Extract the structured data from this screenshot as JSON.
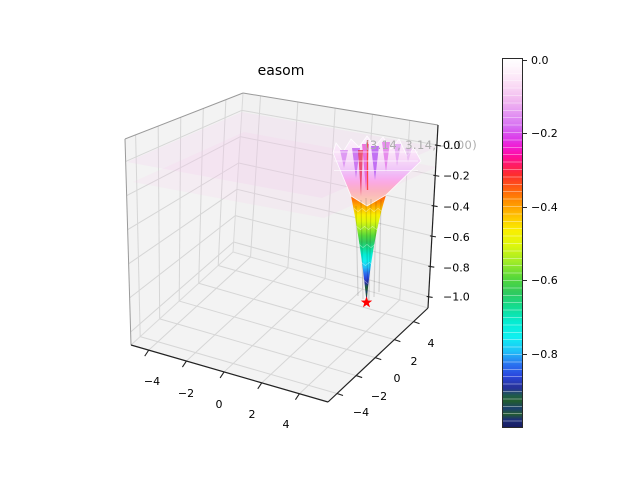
{
  "title": "easom",
  "chart_data": {
    "type": "surface3d",
    "title": "easom",
    "x_tick_values": [
      -4,
      -2,
      0,
      2,
      4
    ],
    "x_tick_labels": [
      "−4",
      "−2",
      "0",
      "2",
      "4"
    ],
    "y_tick_values": [
      -4,
      -2,
      0,
      2,
      4
    ],
    "y_tick_labels": [
      "−4",
      "−2",
      "0",
      "2",
      "4"
    ],
    "z_tick_values": [
      0,
      -0.2,
      -0.4,
      -0.6,
      -0.8,
      -1.0
    ],
    "z_tick_labels": [
      "0.0",
      "−0.2",
      "−0.4",
      "−0.6",
      "−0.8",
      "−1.0"
    ],
    "x_range": [
      -5,
      5
    ],
    "y_range": [
      -5,
      5
    ],
    "z_range": [
      -1,
      0
    ],
    "annotation": "(3.14, 3.14, -1.00)",
    "global_minimum": {
      "x": 3.14,
      "y": 3.14,
      "z": -1.0
    },
    "marker": "red-star",
    "legend_position": "right-colorbar",
    "grid": true,
    "colorbar": {
      "tick_labels": [
        "0.0",
        "−0.2",
        "−0.4",
        "−0.6",
        "−0.8"
      ],
      "tick_values": [
        0,
        -0.2,
        -0.4,
        -0.6,
        -0.8
      ],
      "vmax": 0.0,
      "vmin": -1.0
    }
  },
  "colors": {
    "background": "#ffffff",
    "pane": "#f3f3f3",
    "grid": "#d6d6d6",
    "box_edge": "#9a9a9a",
    "back_edge": "#dadada",
    "spine": "#222222",
    "tick_text": "#000000",
    "annotation_text": "#adadad",
    "marker": "#ff0000",
    "sheet": "#f6c9ee",
    "colormap_stops": [
      [
        0.0,
        "#ffffff"
      ],
      [
        0.035,
        "#fdf0fa"
      ],
      [
        0.07,
        "#fadcf5"
      ],
      [
        0.11,
        "#f2baf0"
      ],
      [
        0.15,
        "#e394f2"
      ],
      [
        0.185,
        "#d66df2"
      ],
      [
        0.215,
        "#dc3cea"
      ],
      [
        0.24,
        "#f31ad0"
      ],
      [
        0.265,
        "#ff0d9c"
      ],
      [
        0.29,
        "#ff1d60"
      ],
      [
        0.315,
        "#fe2d2d"
      ],
      [
        0.35,
        "#ff5c12"
      ],
      [
        0.385,
        "#ff8c00"
      ],
      [
        0.425,
        "#ffc000"
      ],
      [
        0.465,
        "#faee00"
      ],
      [
        0.505,
        "#dff70c"
      ],
      [
        0.55,
        "#a2ec27"
      ],
      [
        0.595,
        "#56d83a"
      ],
      [
        0.635,
        "#2fca5e"
      ],
      [
        0.675,
        "#13dd92"
      ],
      [
        0.715,
        "#05ecd2"
      ],
      [
        0.755,
        "#0ff0f0"
      ],
      [
        0.795,
        "#1fc0f8"
      ],
      [
        0.83,
        "#2a72f0"
      ],
      [
        0.862,
        "#2a46dd"
      ],
      [
        0.888,
        "#27339f"
      ],
      [
        0.895,
        "#263299"
      ],
      [
        0.915,
        "#1f5c4a"
      ],
      [
        0.93,
        "#215c2f"
      ],
      [
        0.95,
        "#1c3f6e"
      ],
      [
        0.965,
        "#235c30"
      ],
      [
        0.98,
        "#1d2d77"
      ],
      [
        1.0,
        "#181d63"
      ]
    ]
  }
}
